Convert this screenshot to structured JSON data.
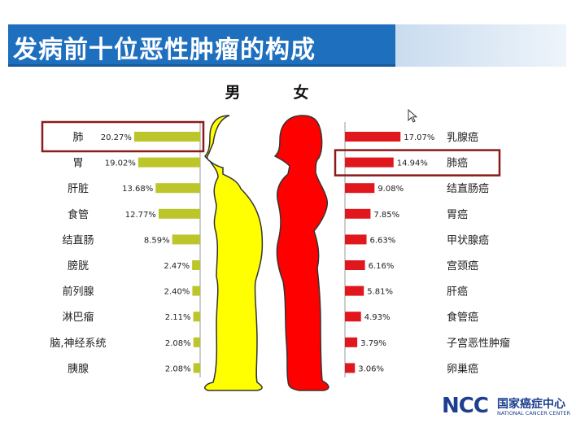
{
  "title": "发病前十位恶性肿瘤的构成",
  "colors": {
    "title_bar": "#1f6fbf",
    "male_bar": "#bcc62a",
    "female_bar": "#e0171c",
    "male_body": "#ffff00",
    "female_body": "#ff0000",
    "highlight_box": "#8b1a1a"
  },
  "logo": {
    "mark": "NCC",
    "name_cn": "国家癌症中心",
    "name_en": "NATIONAL CANCER CENTER"
  },
  "chart_data": [
    {
      "type": "bar",
      "orientation": "horizontal",
      "series_name": "男",
      "categories": [
        "肺",
        "胃",
        "肝脏",
        "食管",
        "结直肠",
        "膀胱",
        "前列腺",
        "淋巴瘤",
        "脑,神经系统",
        "胰腺"
      ],
      "values": [
        20.27,
        19.02,
        13.68,
        12.77,
        8.59,
        2.47,
        2.4,
        2.11,
        2.08,
        2.08
      ],
      "labels": [
        "20.27%",
        "19.02%",
        "13.68%",
        "12.77%",
        "8.59%",
        "2.47%",
        "2.40%",
        "2.11%",
        "2.08%",
        "2.08%"
      ],
      "highlight": "肺",
      "color": "#bcc62a"
    },
    {
      "type": "bar",
      "orientation": "horizontal",
      "series_name": "女",
      "categories": [
        "乳腺癌",
        "肺癌",
        "结直肠癌",
        "胃癌",
        "甲状腺癌",
        "宫颈癌",
        "肝癌",
        "食管癌",
        "子宫恶性肿瘤",
        "卵巢癌"
      ],
      "values": [
        17.07,
        14.94,
        9.08,
        7.85,
        6.63,
        6.16,
        5.81,
        4.93,
        3.79,
        3.06
      ],
      "labels": [
        "17.07%",
        "14.94%",
        "9.08%",
        "7.85%",
        "6.63%",
        "6.16%",
        "5.81%",
        "4.93%",
        "3.79%",
        "3.06%"
      ],
      "highlight": "肺癌",
      "color": "#e0171c"
    }
  ]
}
